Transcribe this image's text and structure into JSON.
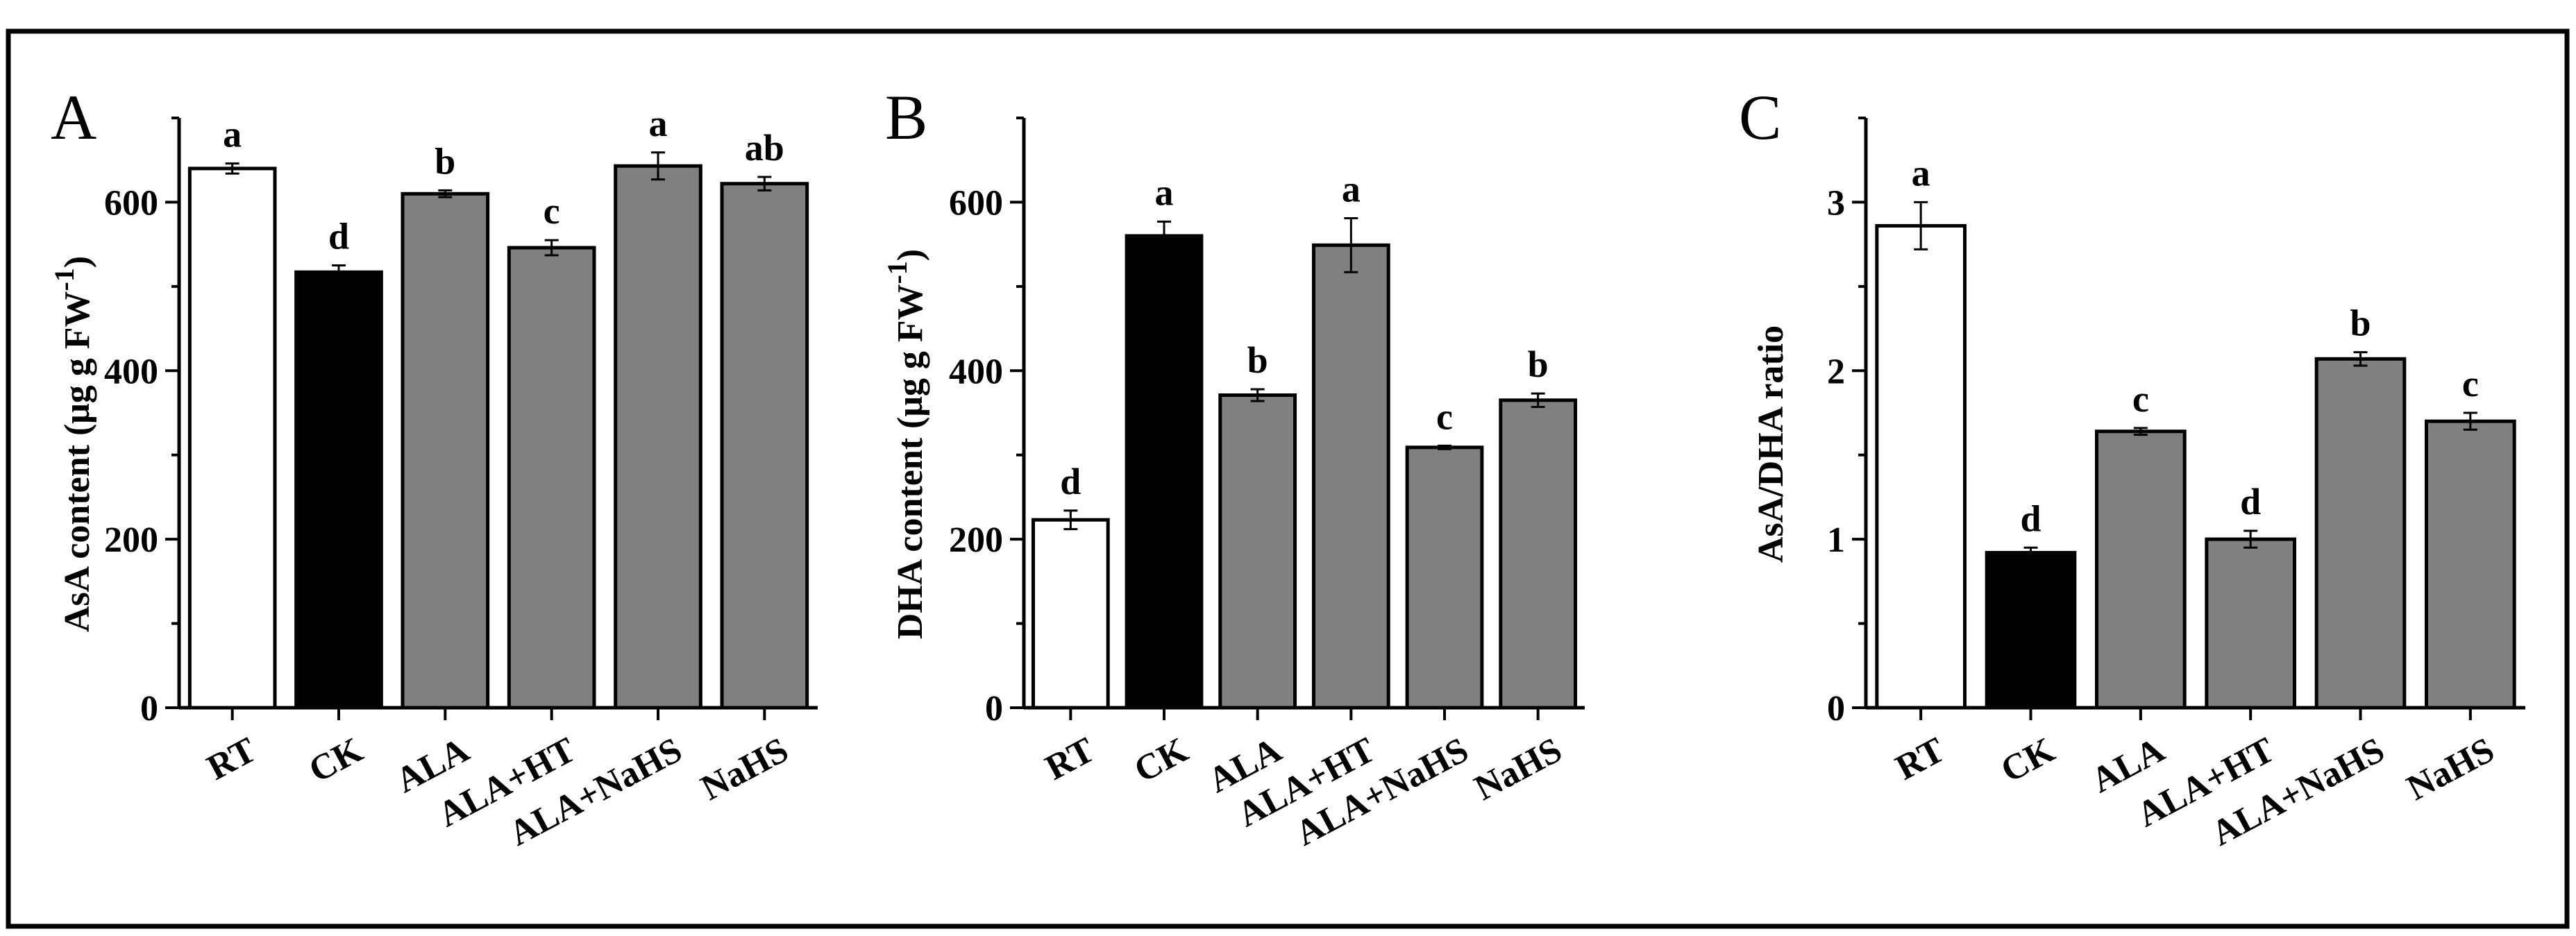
{
  "chart_data": [
    {
      "panel": "A",
      "type": "bar",
      "categories": [
        "RT",
        "CK",
        "ALA",
        "ALA+HT",
        "ALA+NaHS",
        "NaHS"
      ],
      "values": [
        640,
        517,
        610,
        546,
        643,
        622
      ],
      "errors": [
        6,
        8,
        4,
        9,
        16,
        8
      ],
      "significance": [
        "a",
        "d",
        "b",
        "c",
        "a",
        "ab"
      ],
      "bar_fills": [
        "#ffffff",
        "#000000",
        "#808080",
        "#808080",
        "#808080",
        "#808080"
      ],
      "ylabel": "AsA content (μg g FW",
      "ylabel_sup": "-1",
      "ylabel_close": ")",
      "ylim": [
        0,
        700
      ],
      "yticks": [
        0,
        200,
        400,
        600
      ],
      "ytick_labels": [
        "0",
        "200",
        "400",
        "600"
      ]
    },
    {
      "panel": "B",
      "type": "bar",
      "categories": [
        "RT",
        "CK",
        "ALA",
        "ALA+HT",
        "ALA+NaHS",
        "NaHS"
      ],
      "values": [
        223,
        560,
        371,
        549,
        309,
        365
      ],
      "errors": [
        11,
        17,
        7,
        32,
        2,
        8
      ],
      "significance": [
        "d",
        "a",
        "b",
        "a",
        "c",
        "b"
      ],
      "bar_fills": [
        "#ffffff",
        "#000000",
        "#808080",
        "#808080",
        "#808080",
        "#808080"
      ],
      "ylabel": "DHA content (μg g FW",
      "ylabel_sup": "-1",
      "ylabel_close": ")",
      "ylim": [
        0,
        700
      ],
      "yticks": [
        0,
        200,
        400,
        600
      ],
      "ytick_labels": [
        "0",
        "200",
        "400",
        "600"
      ]
    },
    {
      "panel": "C",
      "type": "bar",
      "categories": [
        "RT",
        "CK",
        "ALA",
        "ALA+HT",
        "ALA+NaHS",
        "NaHS"
      ],
      "values": [
        2.86,
        0.92,
        1.64,
        1.0,
        2.07,
        1.7
      ],
      "errors": [
        0.14,
        0.03,
        0.02,
        0.05,
        0.04,
        0.05
      ],
      "significance": [
        "a",
        "d",
        "c",
        "d",
        "b",
        "c"
      ],
      "bar_fills": [
        "#ffffff",
        "#000000",
        "#808080",
        "#808080",
        "#808080",
        "#808080"
      ],
      "ylabel": "AsA/DHA ratio",
      "ylabel_sup": "",
      "ylabel_close": "",
      "ylim": [
        0,
        3.5
      ],
      "yticks": [
        0,
        1,
        2,
        3
      ],
      "ytick_labels": [
        "0",
        "1",
        "2",
        "3"
      ]
    }
  ]
}
